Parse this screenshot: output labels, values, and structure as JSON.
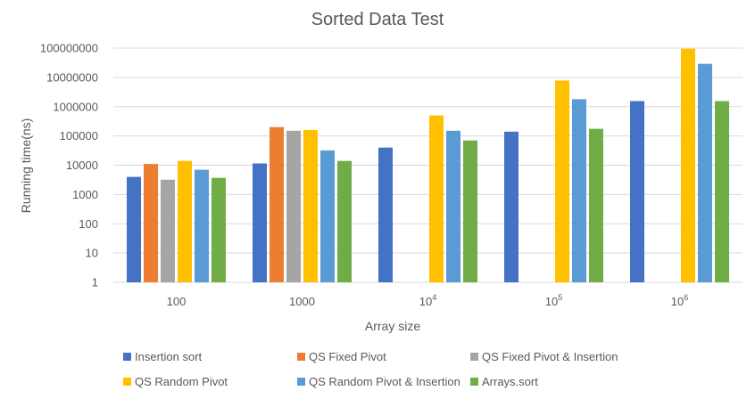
{
  "chart_data": {
    "type": "bar",
    "title": "Sorted Data Test",
    "xlabel": "Array size",
    "ylabel": "Running time(ns)",
    "yscale": "log",
    "ylim": [
      1,
      100000000
    ],
    "yticks": [
      "1",
      "10",
      "100",
      "1000",
      "10000",
      "100000",
      "1000000",
      "10000000",
      "100000000"
    ],
    "categories": [
      {
        "base": "100",
        "exp": ""
      },
      {
        "base": "1000",
        "exp": ""
      },
      {
        "base": "10",
        "exp": "4"
      },
      {
        "base": "10",
        "exp": "5"
      },
      {
        "base": "10",
        "exp": "6"
      }
    ],
    "grid": true,
    "legend_position": "bottom",
    "series": [
      {
        "name": "Insertion sort",
        "color": "#4472c4",
        "values": [
          4000,
          11500,
          40000,
          140000,
          1550000
        ]
      },
      {
        "name": "QS Fixed Pivot",
        "color": "#ed7d31",
        "values": [
          11000,
          200000,
          null,
          null,
          null
        ]
      },
      {
        "name": "QS Fixed Pivot & Insertion",
        "color": "#a5a5a5",
        "values": [
          3200,
          150000,
          null,
          null,
          null
        ]
      },
      {
        "name": "QS Random Pivot",
        "color": "#ffc000",
        "values": [
          14000,
          160000,
          500000,
          7800000,
          95000000
        ]
      },
      {
        "name": "QS Random Pivot & Insertion",
        "color": "#5b9bd5",
        "values": [
          7000,
          32000,
          150000,
          1800000,
          29000000
        ]
      },
      {
        "name": "Arrays.sort",
        "color": "#70ad47",
        "values": [
          3700,
          14000,
          70000,
          175000,
          1550000
        ]
      }
    ]
  }
}
